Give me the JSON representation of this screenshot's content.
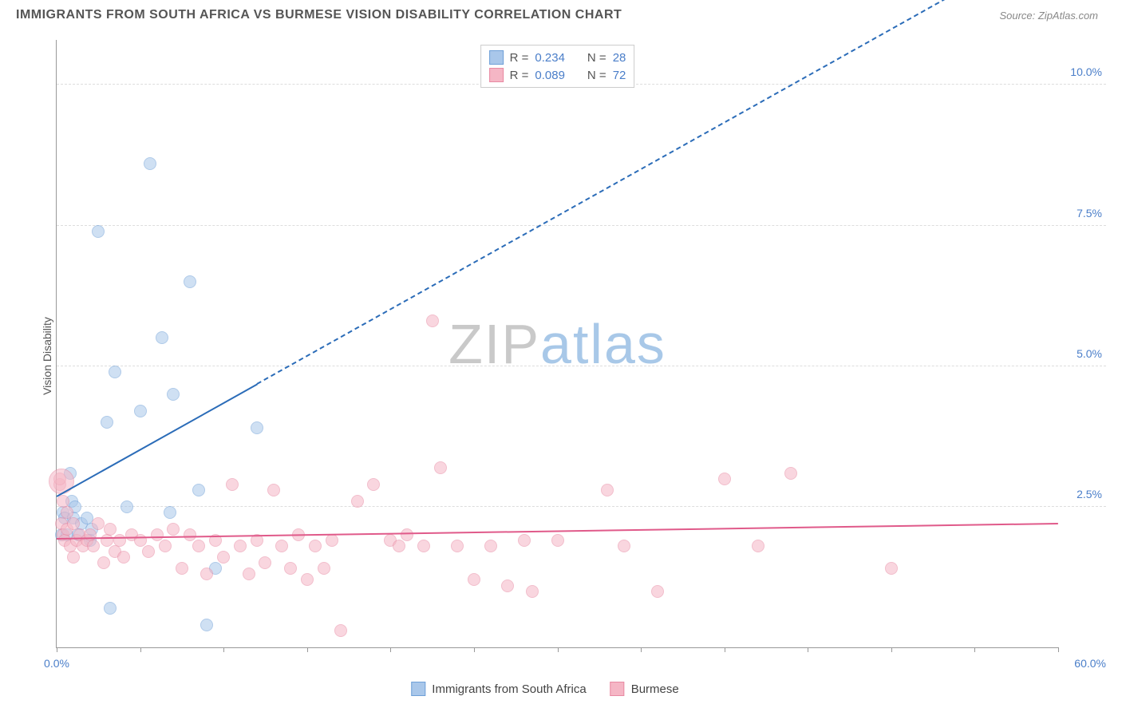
{
  "title": "IMMIGRANTS FROM SOUTH AFRICA VS BURMESE VISION DISABILITY CORRELATION CHART",
  "source": "Source: ZipAtlas.com",
  "ylabel": "Vision Disability",
  "watermark": {
    "zip": "ZIP",
    "atlas": "atlas"
  },
  "chart": {
    "type": "scatter",
    "background_color": "#ffffff",
    "grid_color": "#dddddd",
    "axis_color": "#999999",
    "tick_label_color": "#4a7ec9",
    "xlim": [
      0,
      60
    ],
    "ylim": [
      0,
      10.8
    ],
    "xticks": [
      0,
      5,
      10,
      15,
      20,
      25,
      30,
      35,
      40,
      45,
      50,
      55,
      60
    ],
    "xtick_labels": {
      "0": "0.0%",
      "60": "60.0%"
    },
    "yticks": [
      2.5,
      5.0,
      7.5,
      10.0
    ],
    "ytick_labels": [
      "2.5%",
      "5.0%",
      "7.5%",
      "10.0%"
    ],
    "marker_radius": 8,
    "marker_opacity": 0.55,
    "series": [
      {
        "key": "sa",
        "label": "Immigrants from South Africa",
        "fill": "#a9c7ea",
        "stroke": "#6fa0d8",
        "r": "0.234",
        "n": "28",
        "trend": {
          "slope": 0.166,
          "intercept": 2.7,
          "solid_until_x": 12,
          "color": "#2b6cb8"
        },
        "points": [
          [
            0.3,
            2.0
          ],
          [
            0.4,
            2.4
          ],
          [
            0.5,
            2.3
          ],
          [
            0.6,
            2.0
          ],
          [
            0.8,
            3.1
          ],
          [
            0.9,
            2.6
          ],
          [
            1.0,
            2.3
          ],
          [
            1.1,
            2.5
          ],
          [
            1.3,
            2.0
          ],
          [
            1.5,
            2.2
          ],
          [
            1.8,
            2.3
          ],
          [
            2.0,
            1.9
          ],
          [
            2.1,
            2.1
          ],
          [
            2.5,
            7.4
          ],
          [
            3.0,
            4.0
          ],
          [
            3.2,
            0.7
          ],
          [
            3.5,
            4.9
          ],
          [
            4.2,
            2.5
          ],
          [
            5.0,
            4.2
          ],
          [
            5.6,
            8.6
          ],
          [
            6.3,
            5.5
          ],
          [
            6.8,
            2.4
          ],
          [
            7.0,
            4.5
          ],
          [
            8.0,
            6.5
          ],
          [
            8.5,
            2.8
          ],
          [
            9.0,
            0.4
          ],
          [
            9.5,
            1.4
          ],
          [
            12.0,
            3.9
          ]
        ]
      },
      {
        "key": "bm",
        "label": "Burmese",
        "fill": "#f5b6c5",
        "stroke": "#e88aa3",
        "r": "0.089",
        "n": "72",
        "trend": {
          "slope": 0.0045,
          "intercept": 1.95,
          "solid_until_x": 60,
          "color": "#e05a8a"
        },
        "points": [
          [
            0.2,
            2.9
          ],
          [
            0.3,
            2.2
          ],
          [
            0.4,
            2.0
          ],
          [
            0.5,
            1.9
          ],
          [
            0.6,
            2.1
          ],
          [
            0.8,
            1.8
          ],
          [
            1.0,
            2.2
          ],
          [
            1.2,
            1.9
          ],
          [
            1.4,
            2.0
          ],
          [
            1.6,
            1.8
          ],
          [
            1.8,
            1.9
          ],
          [
            2.0,
            2.0
          ],
          [
            2.2,
            1.8
          ],
          [
            2.5,
            2.2
          ],
          [
            2.8,
            1.5
          ],
          [
            3.0,
            1.9
          ],
          [
            3.2,
            2.1
          ],
          [
            3.5,
            1.7
          ],
          [
            3.8,
            1.9
          ],
          [
            4.0,
            1.6
          ],
          [
            4.5,
            2.0
          ],
          [
            5.0,
            1.9
          ],
          [
            5.5,
            1.7
          ],
          [
            6.0,
            2.0
          ],
          [
            6.5,
            1.8
          ],
          [
            7.0,
            2.1
          ],
          [
            7.5,
            1.4
          ],
          [
            8.0,
            2.0
          ],
          [
            8.5,
            1.8
          ],
          [
            9.0,
            1.3
          ],
          [
            9.5,
            1.9
          ],
          [
            10.0,
            1.6
          ],
          [
            10.5,
            2.9
          ],
          [
            11.0,
            1.8
          ],
          [
            11.5,
            1.3
          ],
          [
            12.0,
            1.9
          ],
          [
            12.5,
            1.5
          ],
          [
            13.0,
            2.8
          ],
          [
            13.5,
            1.8
          ],
          [
            14.0,
            1.4
          ],
          [
            14.5,
            2.0
          ],
          [
            15.0,
            1.2
          ],
          [
            15.5,
            1.8
          ],
          [
            16.0,
            1.4
          ],
          [
            16.5,
            1.9
          ],
          [
            17.0,
            0.3
          ],
          [
            18.0,
            2.6
          ],
          [
            19.0,
            2.9
          ],
          [
            20.0,
            1.9
          ],
          [
            20.5,
            1.8
          ],
          [
            21.0,
            2.0
          ],
          [
            22.0,
            1.8
          ],
          [
            22.5,
            5.8
          ],
          [
            23.0,
            3.2
          ],
          [
            24.0,
            1.8
          ],
          [
            25.0,
            1.2
          ],
          [
            26.0,
            1.8
          ],
          [
            27.0,
            1.1
          ],
          [
            28.0,
            1.9
          ],
          [
            28.5,
            1.0
          ],
          [
            30.0,
            1.9
          ],
          [
            33.0,
            2.8
          ],
          [
            34.0,
            1.8
          ],
          [
            36.0,
            1.0
          ],
          [
            40.0,
            3.0
          ],
          [
            42.0,
            1.8
          ],
          [
            44.0,
            3.1
          ],
          [
            50.0,
            1.4
          ],
          [
            0.2,
            3.0
          ],
          [
            0.4,
            2.6
          ],
          [
            0.6,
            2.4
          ],
          [
            1.0,
            1.6
          ]
        ],
        "big_points": [
          [
            0.3,
            2.95,
            16
          ]
        ]
      }
    ]
  },
  "legend_top_labels": {
    "r": "R =",
    "n": "N ="
  },
  "legend_bottom": [
    {
      "key": "sa",
      "label": "Immigrants from South Africa"
    },
    {
      "key": "bm",
      "label": "Burmese"
    }
  ]
}
